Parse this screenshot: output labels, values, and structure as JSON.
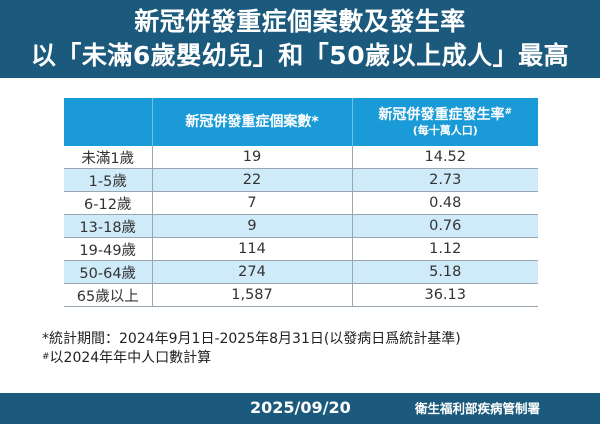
{
  "header": {
    "title_line1": "新冠併發重症個案數及發生率",
    "title_line2": "以「未滿6歲嬰幼兒」和「50歲以上成人」最高"
  },
  "table": {
    "columns": [
      {
        "label": ""
      },
      {
        "label": "新冠併發重症個案數",
        "marker": "*"
      },
      {
        "label": "新冠併發重症發生率",
        "marker": "#",
        "sublabel": "(每十萬人口)"
      }
    ],
    "rows": [
      {
        "age": "未滿1歲",
        "cases": "19",
        "rate": "14.52"
      },
      {
        "age": "1-5歲",
        "cases": "22",
        "rate": "2.73"
      },
      {
        "age": "6-12歲",
        "cases": "7",
        "rate": "0.48"
      },
      {
        "age": "13-18歲",
        "cases": "9",
        "rate": "0.76"
      },
      {
        "age": "19-49歲",
        "cases": "114",
        "rate": "1.12"
      },
      {
        "age": "50-64歲",
        "cases": "274",
        "rate": "5.18"
      },
      {
        "age": "65歲以上",
        "cases": "1,587",
        "rate": "36.13"
      }
    ]
  },
  "notes": {
    "note1": "*統計期間：2024年9月1日-2025年8月31日(以發病日爲統計基準)",
    "note2_marker": "#",
    "note2": "以2024年年中人口數計算"
  },
  "footer": {
    "date": "2025/09/20",
    "org": "衛生福利部疾病管制署"
  },
  "colors": {
    "banner": "#1b5a7c",
    "table_header": "#1a9ad6",
    "row_alt": "#cfeaf8"
  },
  "chart_data": {
    "type": "table",
    "title": "新冠併發重症個案數及發生率",
    "subtitle": "以「未滿6歲嬰幼兒」和「50歲以上成人」最高",
    "categories": [
      "未滿1歲",
      "1-5歲",
      "6-12歲",
      "13-18歲",
      "19-49歲",
      "50-64歲",
      "65歲以上"
    ],
    "series": [
      {
        "name": "新冠併發重症個案數*",
        "values": [
          19,
          22,
          7,
          9,
          114,
          274,
          1587
        ]
      },
      {
        "name": "新冠併發重症發生率# (每十萬人口)",
        "values": [
          14.52,
          2.73,
          0.48,
          0.76,
          1.12,
          5.18,
          36.13
        ]
      }
    ],
    "annotations": [
      "*統計期間：2024年9月1日-2025年8月31日(以發病日爲統計基準)",
      "#以2024年年中人口數計算"
    ],
    "source": "衛生福利部疾病管制署",
    "date": "2025/09/20"
  }
}
